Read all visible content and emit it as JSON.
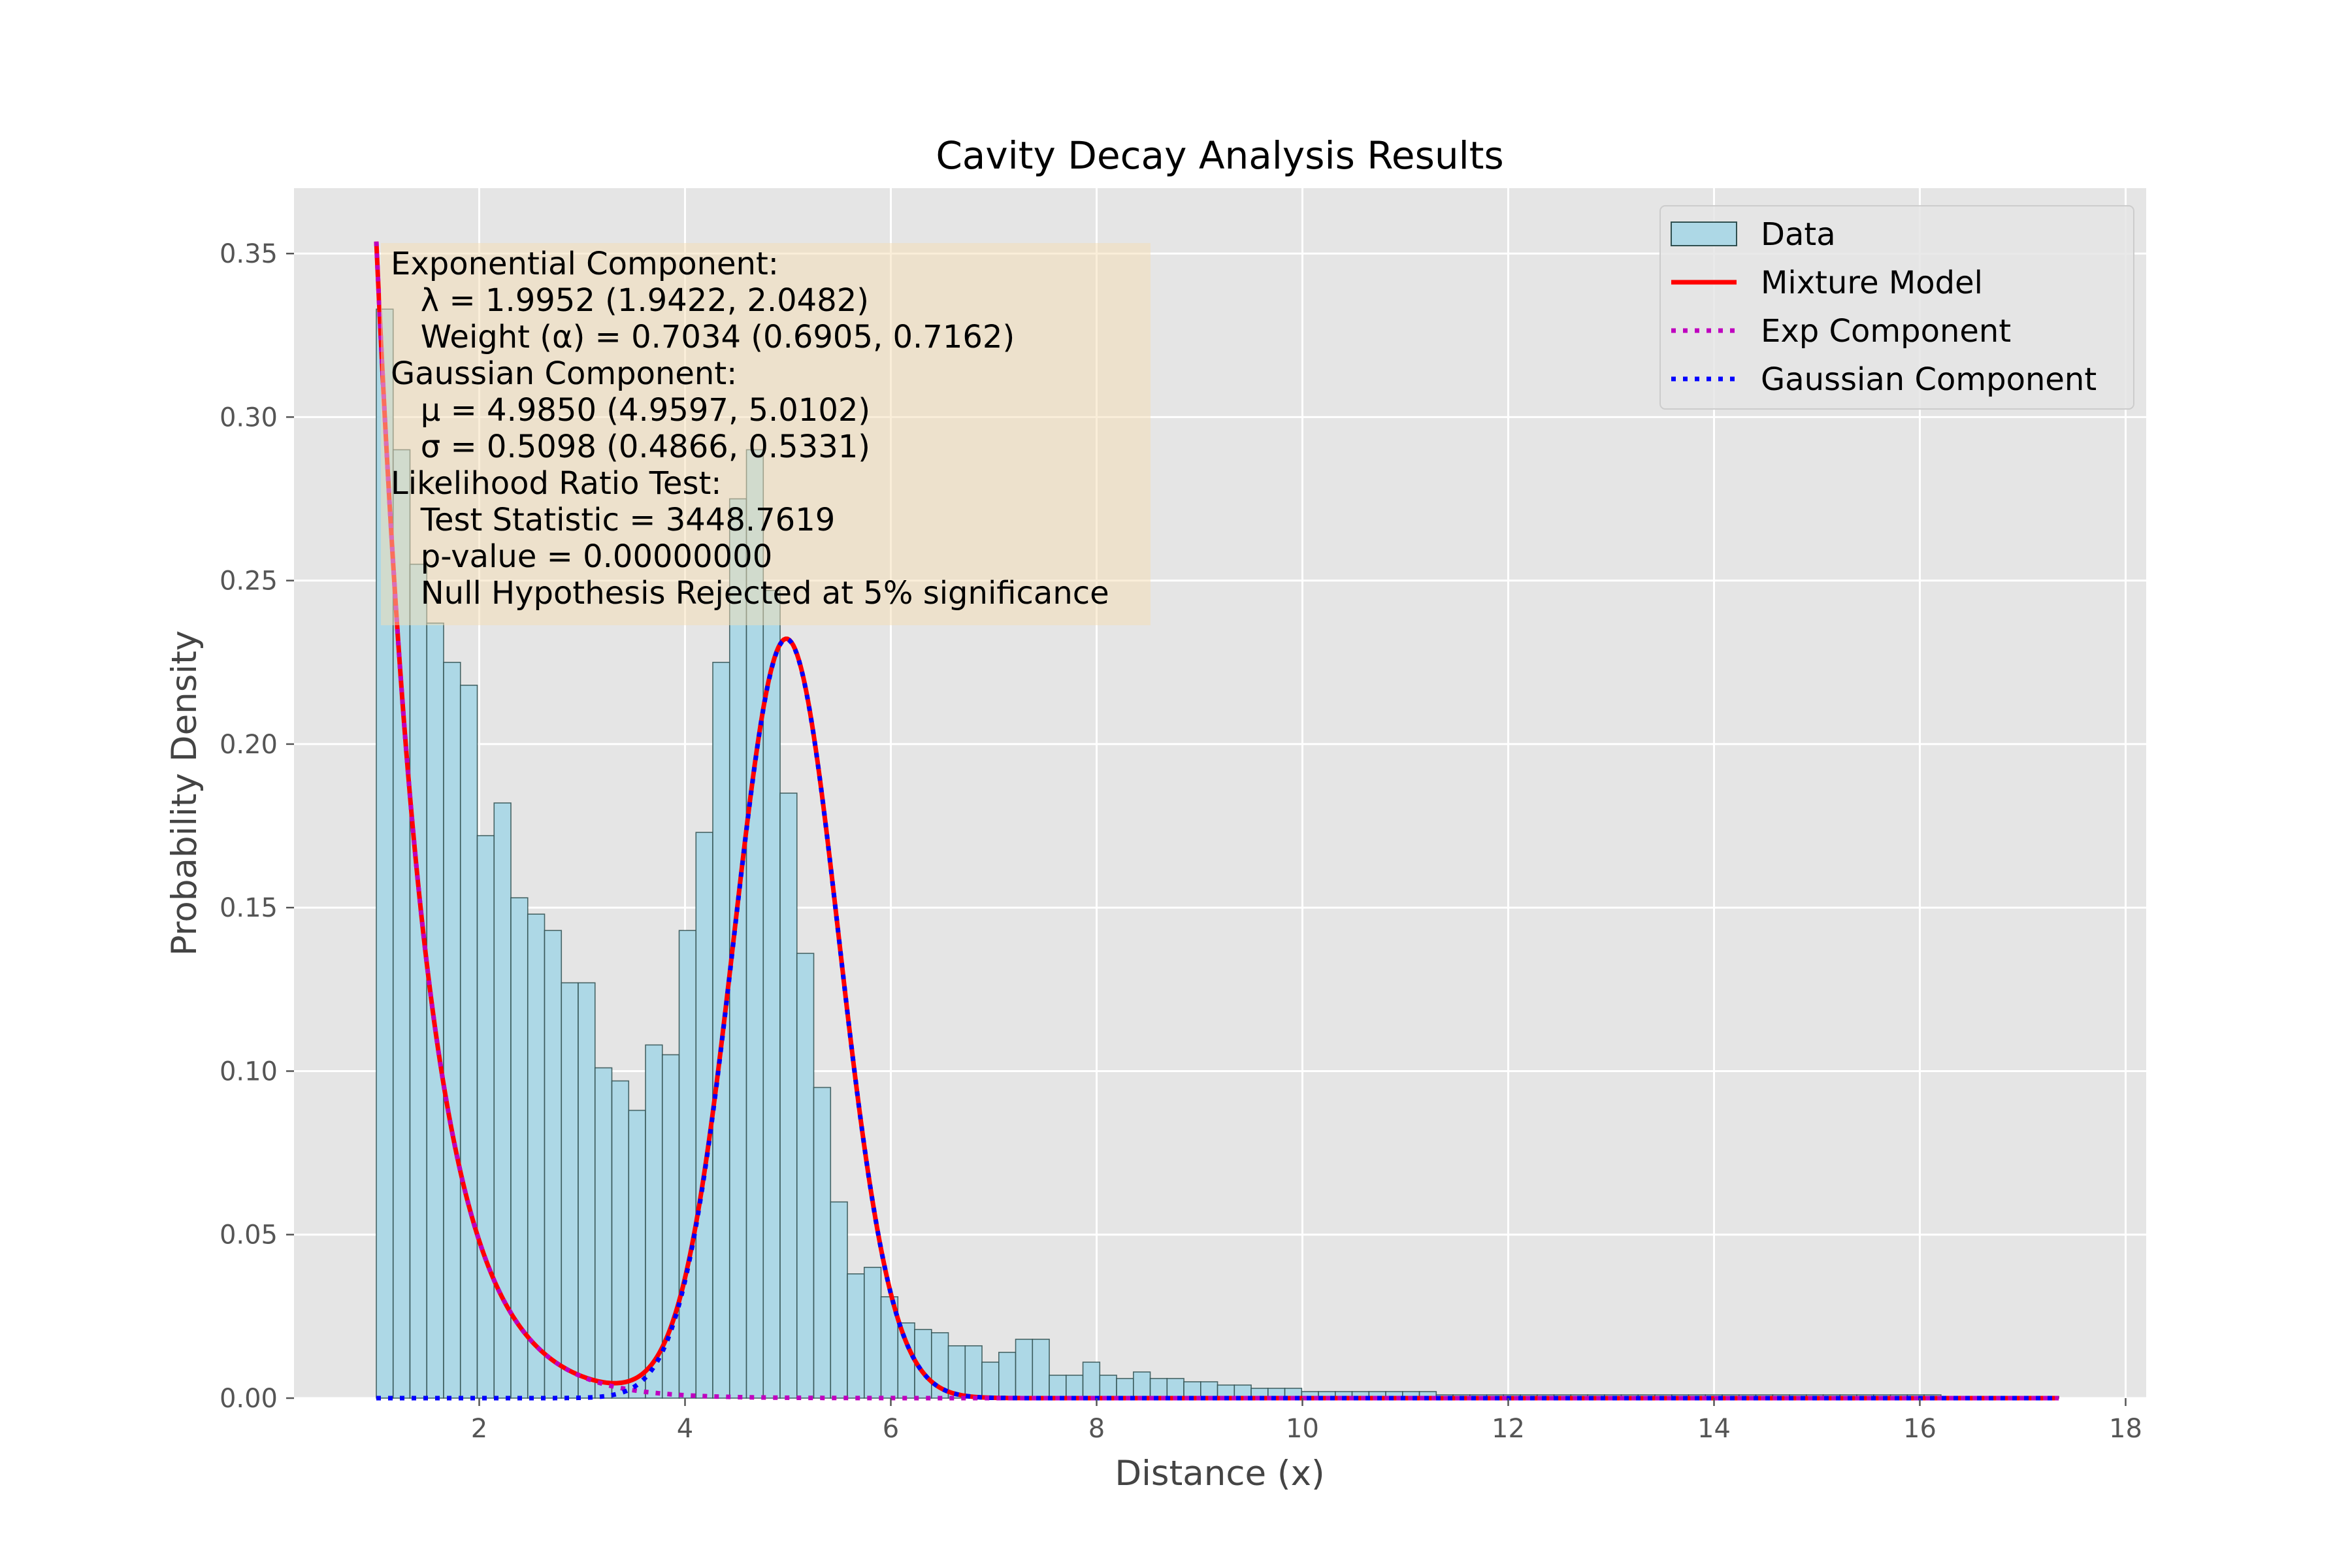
{
  "chart_data": {
    "type": "bar",
    "title": "Cavity Decay Analysis Results",
    "xlabel": "Distance (x)",
    "ylabel": "Probability Density",
    "xlim": [
      0.2,
      18.2
    ],
    "ylim": [
      0,
      0.37
    ],
    "xticks": [
      2,
      4,
      6,
      8,
      10,
      12,
      14,
      16,
      18
    ],
    "yticks": [
      0.0,
      0.05,
      0.1,
      0.15,
      0.2,
      0.25,
      0.3,
      0.35
    ],
    "ytick_labels": [
      "0.00",
      "0.05",
      "0.10",
      "0.15",
      "0.20",
      "0.25",
      "0.30",
      "0.35"
    ],
    "grid": true,
    "legend_position": "top-right",
    "colors": {
      "background": "#e5e5e5",
      "bar_fill": "#add8e6",
      "bar_edge": "#2f4f4f",
      "mixture": "#ff0000",
      "exp": "#bf00bf",
      "gauss": "#0000ff",
      "annotation_box": "#f5deb3"
    },
    "legend": [
      {
        "label": "Data",
        "kind": "patch"
      },
      {
        "label": "Mixture Model",
        "kind": "solid"
      },
      {
        "label": "Exp Component",
        "kind": "dotted-exp"
      },
      {
        "label": "Gaussian Component",
        "kind": "dotted-gauss"
      }
    ],
    "annotation": [
      "Exponential Component:",
      "  λ = 1.9952 (1.9422, 2.0482)",
      "  Weight (α) = 0.7034 (0.6905, 0.7162)",
      "Gaussian Component:",
      "  μ = 4.9850 (4.9597, 5.0102)",
      "  σ = 0.5098 (0.4866, 0.5331)",
      "Likelihood Ratio Test:",
      "  Test Statistic = 3448.7619",
      "  p-value = 0.00000000",
      "  Null Hypothesis Rejected at 5% significance"
    ],
    "histogram": {
      "bin_start": 1.0,
      "bin_width": 0.1635,
      "values": [
        0.333,
        0.29,
        0.255,
        0.237,
        0.225,
        0.218,
        0.172,
        0.182,
        0.153,
        0.148,
        0.143,
        0.127,
        0.127,
        0.101,
        0.097,
        0.088,
        0.108,
        0.105,
        0.143,
        0.173,
        0.225,
        0.275,
        0.29,
        0.247,
        0.185,
        0.136,
        0.095,
        0.06,
        0.038,
        0.04,
        0.031,
        0.023,
        0.021,
        0.02,
        0.016,
        0.016,
        0.011,
        0.014,
        0.018,
        0.018,
        0.007,
        0.007,
        0.011,
        0.007,
        0.006,
        0.008,
        0.006,
        0.006,
        0.005,
        0.005,
        0.004,
        0.004,
        0.003,
        0.003,
        0.003,
        0.002,
        0.002,
        0.002,
        0.002,
        0.002,
        0.002,
        0.002,
        0.002,
        0.001,
        0.001,
        0.001,
        0.001,
        0.001,
        0.001,
        0.001,
        0.001,
        0.001,
        0.001,
        0.001,
        0.001,
        0.001,
        0.001,
        0.001,
        0.001,
        0.001,
        0.001,
        0.001,
        0.001,
        0.001,
        0.001,
        0.001,
        0.001,
        0.001,
        0.001,
        0.001,
        0.001,
        0.001,
        0.001,
        0.0005,
        0.0005,
        0.0005,
        0.0005,
        0.0005,
        0.0005,
        0.0005
      ]
    },
    "model": {
      "x_min": 1.0,
      "x_max": 17.35,
      "lambda": 1.9952,
      "alpha": 0.7034,
      "mu": 4.985,
      "sigma": 0.5098
    }
  }
}
